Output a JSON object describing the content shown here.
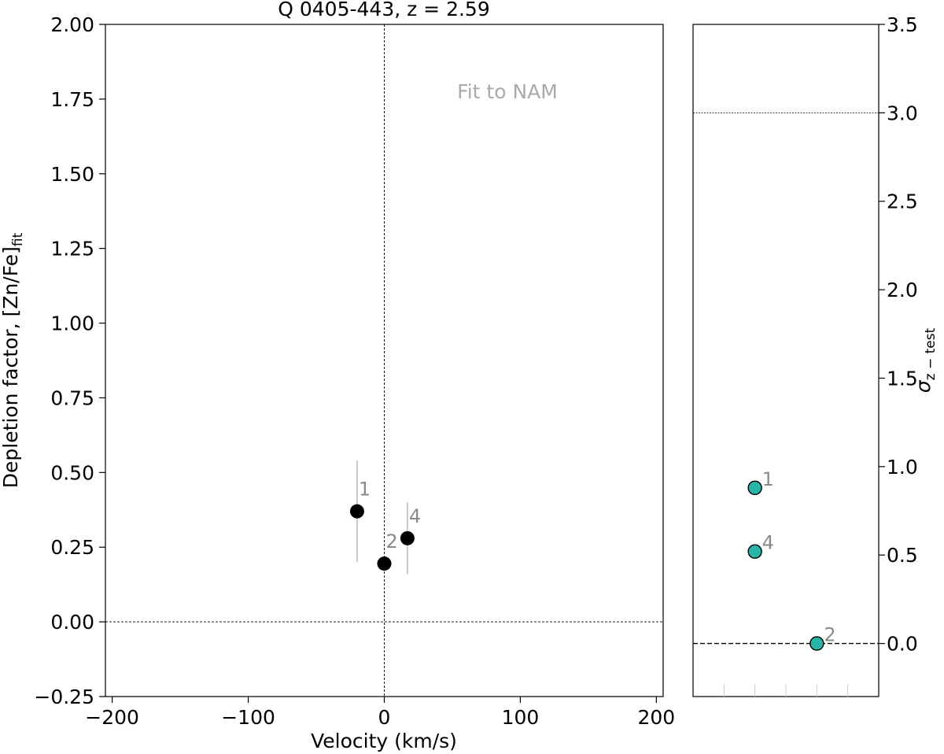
{
  "chart_data": [
    {
      "type": "scatter",
      "title": "Q 0405-443, z = 2.59",
      "annotation": "Fit to NAM",
      "xlabel": "Velocity (km/s)",
      "ylabel_main": "Depletion factor, [Zn/Fe]",
      "ylabel_sub": "fit",
      "xlim": [
        -205,
        205
      ],
      "ylim": [
        -0.25,
        2.0
      ],
      "xticks": [
        -200,
        -100,
        0,
        100,
        200
      ],
      "xtick_labels": [
        "−200",
        "−100",
        "0",
        "100",
        "200"
      ],
      "yticks": [
        -0.25,
        0.0,
        0.25,
        0.5,
        0.75,
        1.0,
        1.25,
        1.5,
        1.75,
        2.0
      ],
      "ytick_labels": [
        "−0.25",
        "0.00",
        "0.25",
        "0.50",
        "0.75",
        "1.00",
        "1.25",
        "1.50",
        "1.75",
        "2.00"
      ],
      "reference_lines": {
        "x": 0,
        "y": 0
      },
      "colors": {
        "point": "#000000",
        "errorbar": "#bbbbbb",
        "label": "#8a8a8a",
        "annotation": "#aaaaaa"
      },
      "points": [
        {
          "label": "1",
          "x": -20,
          "y": 0.37,
          "yerr_low": 0.2,
          "yerr_high": 0.54
        },
        {
          "label": "2",
          "x": 0,
          "y": 0.195,
          "yerr_low": 0.195,
          "yerr_high": 0.195
        },
        {
          "label": "4",
          "x": 17,
          "y": 0.28,
          "yerr_low": 0.16,
          "yerr_high": 0.4
        }
      ]
    },
    {
      "type": "scatter",
      "ylabel": "σ",
      "ylabel_sub": "z − test",
      "ylim": [
        -0.3,
        3.5
      ],
      "yticks": [
        0.0,
        0.5,
        1.0,
        1.5,
        2.0,
        2.5,
        3.0,
        3.5
      ],
      "ytick_labels": [
        "0.0",
        "0.5",
        "1.0",
        "1.5",
        "2.0",
        "2.5",
        "3.0",
        "3.5"
      ],
      "xlim": [
        0,
        6
      ],
      "x_minor_ticks": [
        1,
        2,
        3,
        4,
        5
      ],
      "reference_lines": {
        "y_dashed": 0.0,
        "y_dotted": 3.0
      },
      "colors": {
        "point": "#2ab3a8",
        "edge": "#000000",
        "label": "#8a8a8a"
      },
      "points": [
        {
          "label": "1",
          "x": 2,
          "y": 0.88
        },
        {
          "label": "4",
          "x": 2,
          "y": 0.52
        },
        {
          "label": "2",
          "x": 4,
          "y": 0.0
        }
      ]
    }
  ]
}
